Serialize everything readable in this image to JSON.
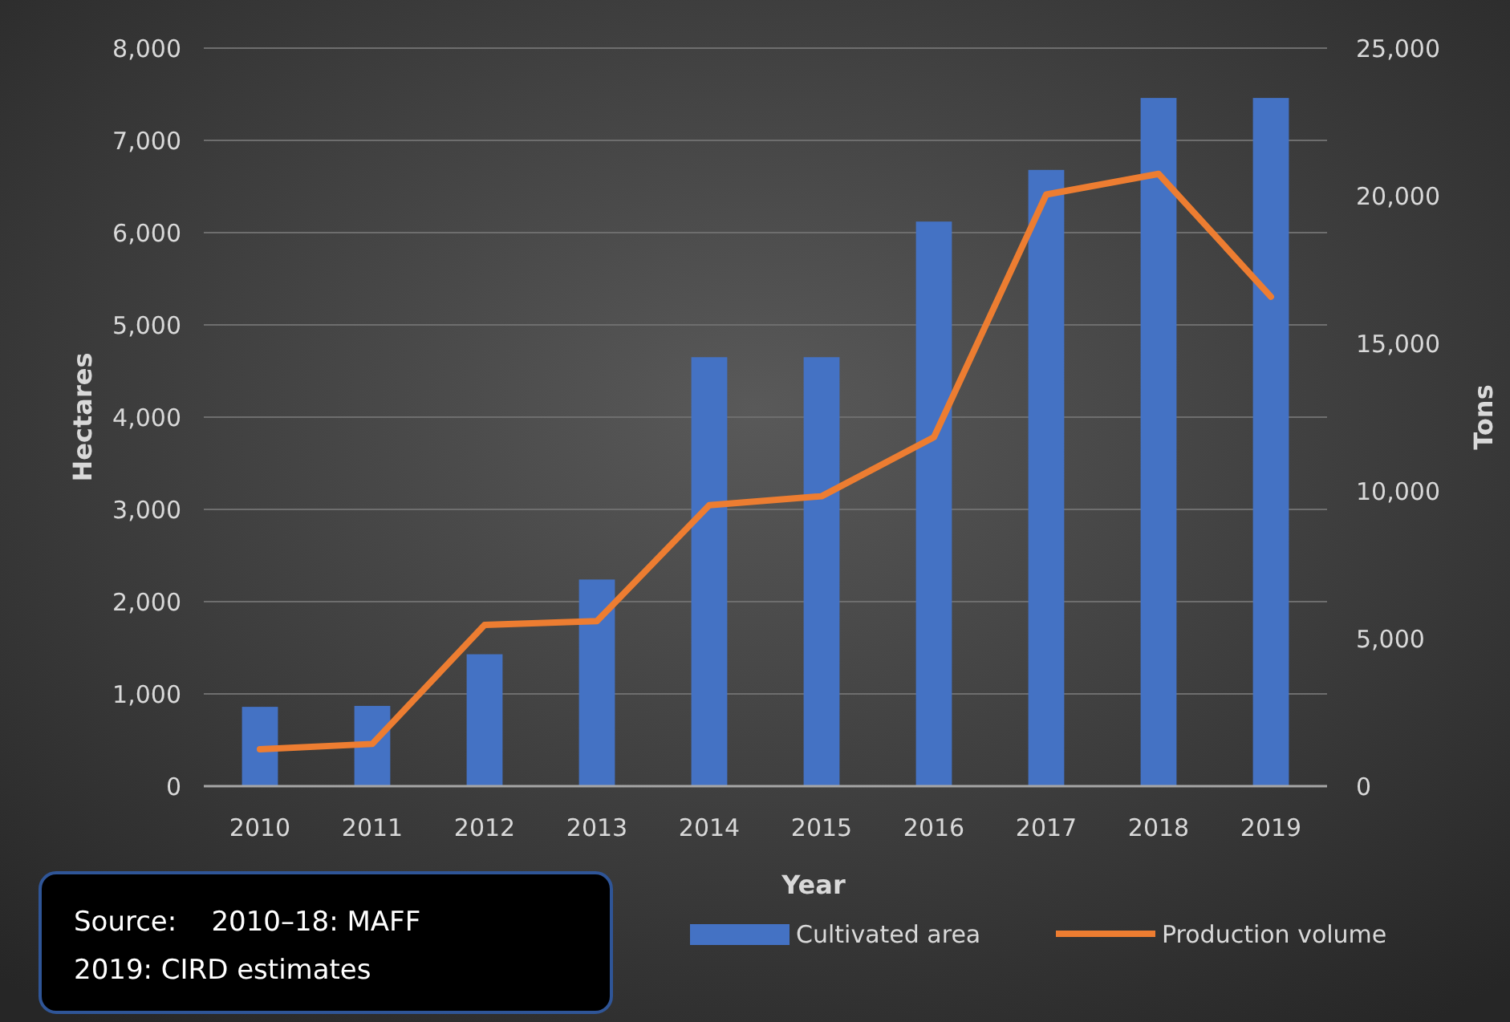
{
  "chart_data": {
    "type": "bar",
    "xlabel": "Year",
    "ylabel": "Hectares",
    "y2label": "Tons",
    "categories": [
      "2010",
      "2011",
      "2012",
      "2013",
      "2014",
      "2015",
      "2016",
      "2017",
      "2018",
      "2019"
    ],
    "series": [
      {
        "name": "Cultivated area",
        "color": "#4472c4",
        "values": [
          860,
          870,
          1430,
          2240,
          4650,
          4650,
          6120,
          6680,
          7460,
          7460
        ]
      },
      {
        "name": "Production volume",
        "type": "line",
        "axis": "y2",
        "color": "#ed7d31",
        "marker": "none",
        "values": [
          1250,
          1430,
          5460,
          5590,
          9520,
          9820,
          11820,
          20040,
          20740,
          16580
        ]
      }
    ],
    "ylim": [
      0,
      8000
    ],
    "yticks": [
      {
        "value": 0,
        "label": "0"
      },
      {
        "value": 1000,
        "label": "1,000"
      },
      {
        "value": 2000,
        "label": "2,000"
      },
      {
        "value": 3000,
        "label": "3,000"
      },
      {
        "value": 4000,
        "label": "4,000"
      },
      {
        "value": 5000,
        "label": "5,000"
      },
      {
        "value": 6000,
        "label": "6,000"
      },
      {
        "value": 7000,
        "label": "7,000"
      },
      {
        "value": 8000,
        "label": "8,000"
      }
    ],
    "y2lim": [
      0,
      25000
    ],
    "y2ticks": [
      {
        "value": 0,
        "label": "0"
      },
      {
        "value": 5000,
        "label": "5,000"
      },
      {
        "value": 10000,
        "label": "10,000"
      },
      {
        "value": 15000,
        "label": "15,000"
      },
      {
        "value": 20000,
        "label": "20,000"
      },
      {
        "value": 25000,
        "label": "25,000"
      }
    ],
    "grid": "y",
    "legend": "bottom",
    "annotations": [
      "Source:    2010–18: MAFF",
      "2019: CIRD estimates"
    ]
  }
}
